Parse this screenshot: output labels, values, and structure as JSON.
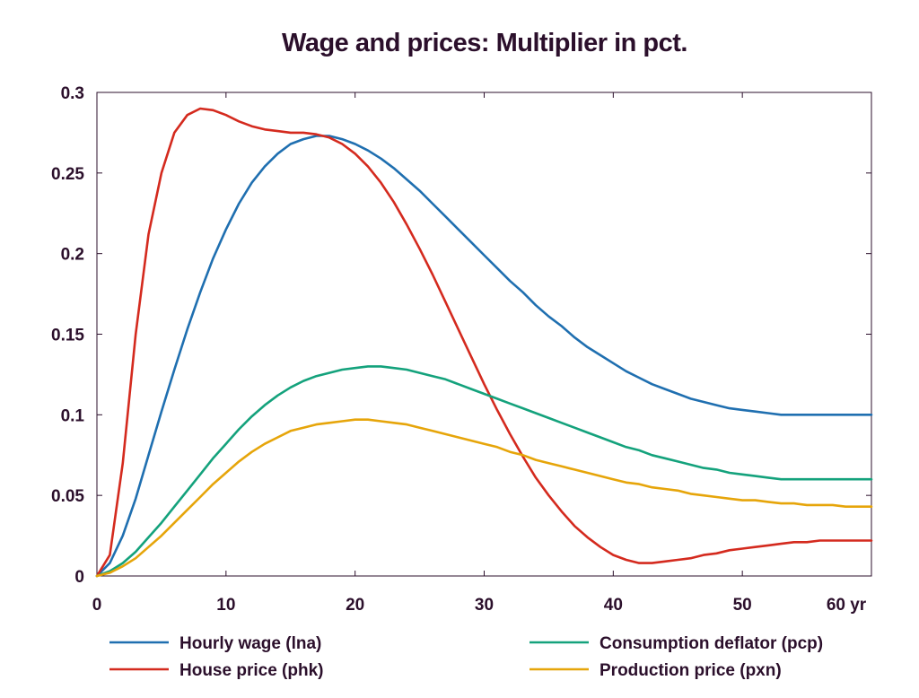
{
  "chart_data": {
    "type": "line",
    "title": "Wage and prices: Multiplier in pct.",
    "xlabel": "",
    "ylabel": "",
    "x_unit_label": "yr",
    "xlim": [
      0,
      60
    ],
    "ylim": [
      0,
      0.3
    ],
    "x_ticks": [
      0,
      10,
      20,
      30,
      40,
      50,
      60
    ],
    "x_tick_labels": [
      "0",
      "10",
      "20",
      "30",
      "40",
      "50",
      "60 yr"
    ],
    "y_ticks": [
      0,
      0.05,
      0.1,
      0.15,
      0.2,
      0.25,
      0.3
    ],
    "y_tick_labels": [
      "0",
      "0.05",
      "0.1",
      "0.15",
      "0.2",
      "0.25",
      "0.3"
    ],
    "grid": false,
    "legend_position": "bottom",
    "x": [
      0,
      1,
      2,
      3,
      4,
      5,
      6,
      7,
      8,
      9,
      10,
      11,
      12,
      13,
      14,
      15,
      16,
      17,
      18,
      19,
      20,
      21,
      22,
      23,
      24,
      25,
      26,
      27,
      28,
      29,
      30,
      31,
      32,
      33,
      34,
      35,
      36,
      37,
      38,
      39,
      40,
      41,
      42,
      43,
      44,
      45,
      46,
      47,
      48,
      49,
      50,
      51,
      52,
      53,
      54,
      55,
      56,
      57,
      58,
      59,
      60
    ],
    "series": [
      {
        "name": "Hourly wage (lna)",
        "color": "#1f6fb0",
        "values": [
          0,
          0.008,
          0.025,
          0.048,
          0.075,
          0.102,
          0.128,
          0.153,
          0.176,
          0.197,
          0.215,
          0.231,
          0.244,
          0.254,
          0.262,
          0.268,
          0.271,
          0.273,
          0.273,
          0.271,
          0.268,
          0.264,
          0.259,
          0.253,
          0.246,
          0.239,
          0.231,
          0.223,
          0.215,
          0.207,
          0.199,
          0.191,
          0.183,
          0.176,
          0.168,
          0.161,
          0.155,
          0.148,
          0.142,
          0.137,
          0.132,
          0.127,
          0.123,
          0.119,
          0.116,
          0.113,
          0.11,
          0.108,
          0.106,
          0.104,
          0.103,
          0.102,
          0.101,
          0.1,
          0.1,
          0.1,
          0.1,
          0.1,
          0.1,
          0.1,
          0.1
        ]
      },
      {
        "name": "House price (phk)",
        "color": "#d42a1e",
        "values": [
          0,
          0.013,
          0.07,
          0.15,
          0.212,
          0.25,
          0.275,
          0.286,
          0.29,
          0.289,
          0.286,
          0.282,
          0.279,
          0.277,
          0.276,
          0.275,
          0.275,
          0.274,
          0.272,
          0.268,
          0.262,
          0.254,
          0.244,
          0.232,
          0.218,
          0.203,
          0.187,
          0.17,
          0.153,
          0.136,
          0.119,
          0.103,
          0.088,
          0.074,
          0.061,
          0.05,
          0.04,
          0.031,
          0.024,
          0.018,
          0.013,
          0.01,
          0.008,
          0.008,
          0.009,
          0.01,
          0.011,
          0.013,
          0.014,
          0.016,
          0.017,
          0.018,
          0.019,
          0.02,
          0.021,
          0.021,
          0.022,
          0.022,
          0.022,
          0.022,
          0.022
        ]
      },
      {
        "name": "Consumption deflator (pcp)",
        "color": "#14a27c",
        "values": [
          0,
          0.003,
          0.008,
          0.015,
          0.024,
          0.033,
          0.043,
          0.053,
          0.063,
          0.073,
          0.082,
          0.091,
          0.099,
          0.106,
          0.112,
          0.117,
          0.121,
          0.124,
          0.126,
          0.128,
          0.129,
          0.13,
          0.13,
          0.129,
          0.128,
          0.126,
          0.124,
          0.122,
          0.119,
          0.116,
          0.113,
          0.11,
          0.107,
          0.104,
          0.101,
          0.098,
          0.095,
          0.092,
          0.089,
          0.086,
          0.083,
          0.08,
          0.078,
          0.075,
          0.073,
          0.071,
          0.069,
          0.067,
          0.066,
          0.064,
          0.063,
          0.062,
          0.061,
          0.06,
          0.06,
          0.06,
          0.06,
          0.06,
          0.06,
          0.06,
          0.06
        ]
      },
      {
        "name": "Production price (pxn)",
        "color": "#e6a50a",
        "values": [
          0,
          0.002,
          0.006,
          0.011,
          0.018,
          0.025,
          0.033,
          0.041,
          0.049,
          0.057,
          0.064,
          0.071,
          0.077,
          0.082,
          0.086,
          0.09,
          0.092,
          0.094,
          0.095,
          0.096,
          0.097,
          0.097,
          0.096,
          0.095,
          0.094,
          0.092,
          0.09,
          0.088,
          0.086,
          0.084,
          0.082,
          0.08,
          0.077,
          0.075,
          0.072,
          0.07,
          0.068,
          0.066,
          0.064,
          0.062,
          0.06,
          0.058,
          0.057,
          0.055,
          0.054,
          0.053,
          0.051,
          0.05,
          0.049,
          0.048,
          0.047,
          0.047,
          0.046,
          0.045,
          0.045,
          0.044,
          0.044,
          0.044,
          0.043,
          0.043,
          0.043
        ]
      }
    ]
  }
}
